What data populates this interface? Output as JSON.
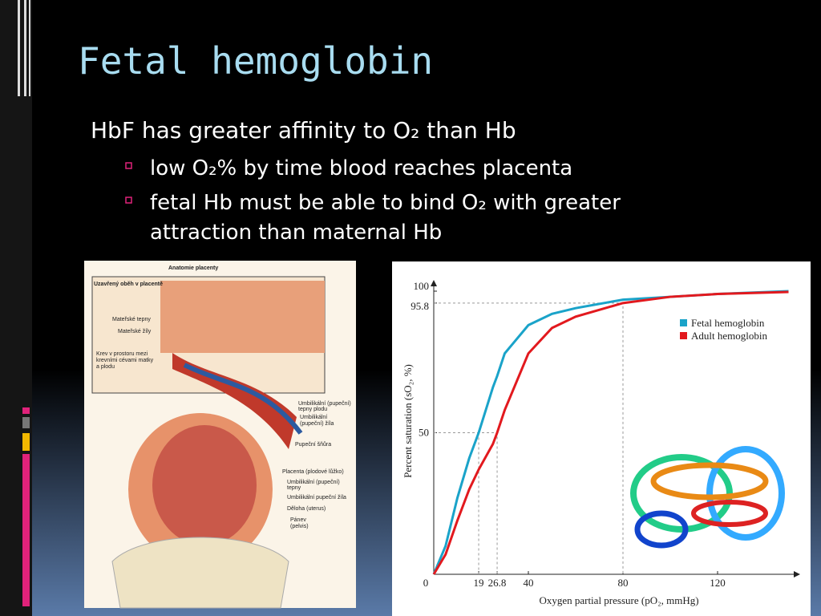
{
  "slide": {
    "title": "Fetal hemoglobin",
    "bullets": [
      {
        "text": "HbF has greater affinity to O₂ than Hb",
        "subitems": [
          "low O₂% by time blood reaches placenta",
          "fetal Hb must be able to bind O₂ with greater",
          "attraction than maternal Hb"
        ]
      }
    ]
  },
  "figure": {
    "title": "Anatomie placenty",
    "subtitle": "Uzavřený oběh v placentě",
    "labels": [
      "Mateřské tepny",
      "Mateřské žíly",
      "Krev v prostoru mezi",
      "krevními cévami matky",
      "a plodu",
      "Umbilikální (pupeční)",
      "tepny plodu",
      "Umbilikální",
      "(pupeční) žíla",
      "Pupeční šňůra",
      "Placenta (plodové lůžko)",
      "Umbilikální (pupeční)",
      "tepny",
      "Umbilikální pupeční žíla",
      "Děloha (uterus)",
      "Pánev",
      "(pelvis)"
    ]
  },
  "chart_data": {
    "type": "line",
    "xlabel": "Oxygen partial pressure (pO₂, mmHg)",
    "ylabel": "Percent saturation (sO₂, %)",
    "x": [
      0,
      5,
      10,
      15,
      19,
      25,
      26.8,
      30,
      40,
      50,
      60,
      80,
      100,
      120,
      150
    ],
    "series": [
      {
        "name": "Fetal hemoglobin",
        "color": "#1aa3c9",
        "values": [
          0,
          10,
          27,
          41,
          50,
          66,
          70,
          78,
          88,
          92,
          94,
          97,
          98,
          99,
          100
        ]
      },
      {
        "name": "Adult hemoglobin",
        "color": "#e2191e",
        "values": [
          0,
          7,
          19,
          30,
          37,
          46,
          50,
          58,
          78,
          87,
          91,
          95.8,
          98,
          99,
          99.7
        ]
      }
    ],
    "xlim": [
      0,
      150
    ],
    "ylim": [
      0,
      100
    ],
    "xticks": [
      0,
      19,
      26.8,
      40,
      80,
      120
    ],
    "yticks": [
      50,
      95.8,
      100
    ],
    "legend": "upper right",
    "grid": false
  }
}
